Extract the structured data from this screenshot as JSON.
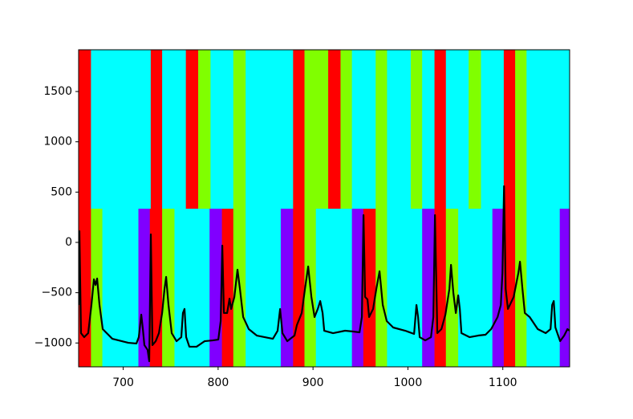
{
  "chart_data": {
    "type": "line",
    "xlim": [
      653,
      1170.4
    ],
    "ylim": [
      -1237,
      1915
    ],
    "xticks": [
      700,
      800,
      900,
      1000,
      1100
    ],
    "yticks": [
      {
        "value": -1000,
        "label": "−1000"
      },
      {
        "value": -500,
        "label": "−500"
      },
      0,
      500,
      1000,
      1500
    ],
    "bands": [
      {
        "ymin": 335,
        "ymax": 1915,
        "edges": [
          653,
          666,
          729,
          741,
          766,
          779,
          792,
          816,
          829,
          879,
          891,
          916,
          929,
          941,
          966,
          978,
          1003,
          1015,
          1028,
          1040,
          1064,
          1077,
          1101,
          1113,
          1125,
          1170.4
        ],
        "colors": [
          "#ff0000",
          "#00ffff",
          "#ff0000",
          "#00ffff",
          "#ff0000",
          "#80ff00",
          "#00ffff",
          "#80ff00",
          "#00ffff",
          "#ff0000",
          "#80ff00",
          "#ff0000",
          "#80ff00",
          "#00ffff",
          "#80ff00",
          "#00ffff",
          "#80ff00",
          "#00ffff",
          "#ff0000",
          "#00ffff",
          "#80ff00",
          "#00ffff",
          "#ff0000",
          "#80ff00",
          "#00ffff"
        ]
      },
      {
        "ymin": -1237,
        "ymax": 335,
        "edges": [
          653,
          666,
          678,
          716,
          728,
          741,
          754,
          791,
          804,
          816,
          829,
          866,
          879,
          891,
          903,
          941,
          953,
          966,
          978,
          1015,
          1028,
          1040,
          1053,
          1089,
          1101,
          1113,
          1125,
          1160,
          1170.4
        ],
        "colors": [
          "#ff0000",
          "#80ff00",
          "#00ffff",
          "#8000ff",
          "#ff0000",
          "#80ff00",
          "#00ffff",
          "#8000ff",
          "#ff0000",
          "#80ff00",
          "#00ffff",
          "#8000ff",
          "#ff0000",
          "#80ff00",
          "#00ffff",
          "#8000ff",
          "#ff0000",
          "#80ff00",
          "#00ffff",
          "#8000ff",
          "#ff0000",
          "#80ff00",
          "#00ffff",
          "#8000ff",
          "#ff0000",
          "#80ff00",
          "#00ffff",
          "#8000ff"
        ]
      }
    ],
    "color": "#000000",
    "x": [
      653,
      653.8,
      655.5,
      658.9,
      663.1,
      666.5,
      669.1,
      670.8,
      672.5,
      675,
      678.4,
      688.5,
      705.4,
      713.9,
      716.4,
      719,
      720.7,
      722.3,
      725.7,
      727.4,
      729.1,
      730.8,
      734.2,
      737.6,
      741,
      743.5,
      745.2,
      747.7,
      751.1,
      756.2,
      761.2,
      762.9,
      764.6,
      766.3,
      769.7,
      777.3,
      785.8,
      794.2,
      800.2,
      802.7,
      804.4,
      806.1,
      809.5,
      812,
      813.7,
      817.1,
      820.4,
      823,
      826.4,
      832.3,
      840.7,
      857.7,
      862.7,
      865.3,
      867.8,
      872.9,
      880.5,
      883,
      888.1,
      891.5,
      894.9,
      898.3,
      901.6,
      905,
      907.6,
      910.1,
      911.8,
      921.1,
      933.8,
      942.2,
      949,
      951.5,
      953.2,
      954.9,
      957.4,
      959.1,
      963.3,
      966.7,
      970.1,
      973.5,
      977.7,
      984.5,
      997.2,
      1006.5,
      1009,
      1010.7,
      1012.4,
      1018.3,
      1024.3,
      1026.8,
      1028.5,
      1031,
      1035.3,
      1039.5,
      1043.7,
      1045.4,
      1047.9,
      1050.5,
      1053,
      1054.7,
      1056.4,
      1064.9,
      1074.2,
      1081.8,
      1087.7,
      1094.5,
      1097.9,
      1099.6,
      1101.3,
      1103,
      1105.4,
      1111.4,
      1116.4,
      1118.1,
      1120.7,
      1123.2,
      1128.3,
      1136.8,
      1145.2,
      1150.3,
      1152,
      1153.7,
      1155.4,
      1160.4,
      1164.7,
      1168.1,
      1170.4
    ],
    "values": [
      -622,
      112,
      -902,
      -942,
      -902,
      -622,
      -367,
      -423,
      -359,
      -622,
      -862,
      -958,
      -998,
      -1005,
      -942,
      -718,
      -862,
      -1021,
      -1069,
      -1181,
      80,
      -1021,
      -982,
      -902,
      -702,
      -463,
      -343,
      -622,
      -902,
      -982,
      -942,
      -702,
      -662,
      -942,
      -1037,
      -1037,
      -982,
      -974,
      -966,
      -782,
      -32,
      -702,
      -702,
      -559,
      -662,
      -543,
      -271,
      -463,
      -742,
      -862,
      -926,
      -958,
      -878,
      -662,
      -902,
      -982,
      -926,
      -822,
      -702,
      -463,
      -239,
      -543,
      -742,
      -662,
      -583,
      -702,
      -878,
      -902,
      -878,
      -886,
      -894,
      -742,
      271,
      -543,
      -567,
      -742,
      -662,
      -463,
      -287,
      -622,
      -782,
      -846,
      -878,
      -910,
      -622,
      -742,
      -942,
      -974,
      -942,
      -742,
      271,
      -902,
      -862,
      -718,
      -463,
      -223,
      -503,
      -702,
      -527,
      -662,
      -902,
      -942,
      -926,
      -918,
      -862,
      -742,
      -622,
      -303,
      559,
      -463,
      -662,
      -543,
      -303,
      -192,
      -463,
      -702,
      -742,
      -862,
      -902,
      -862,
      -622,
      -583,
      -846,
      -982,
      -926,
      -862,
      -878
    ]
  }
}
